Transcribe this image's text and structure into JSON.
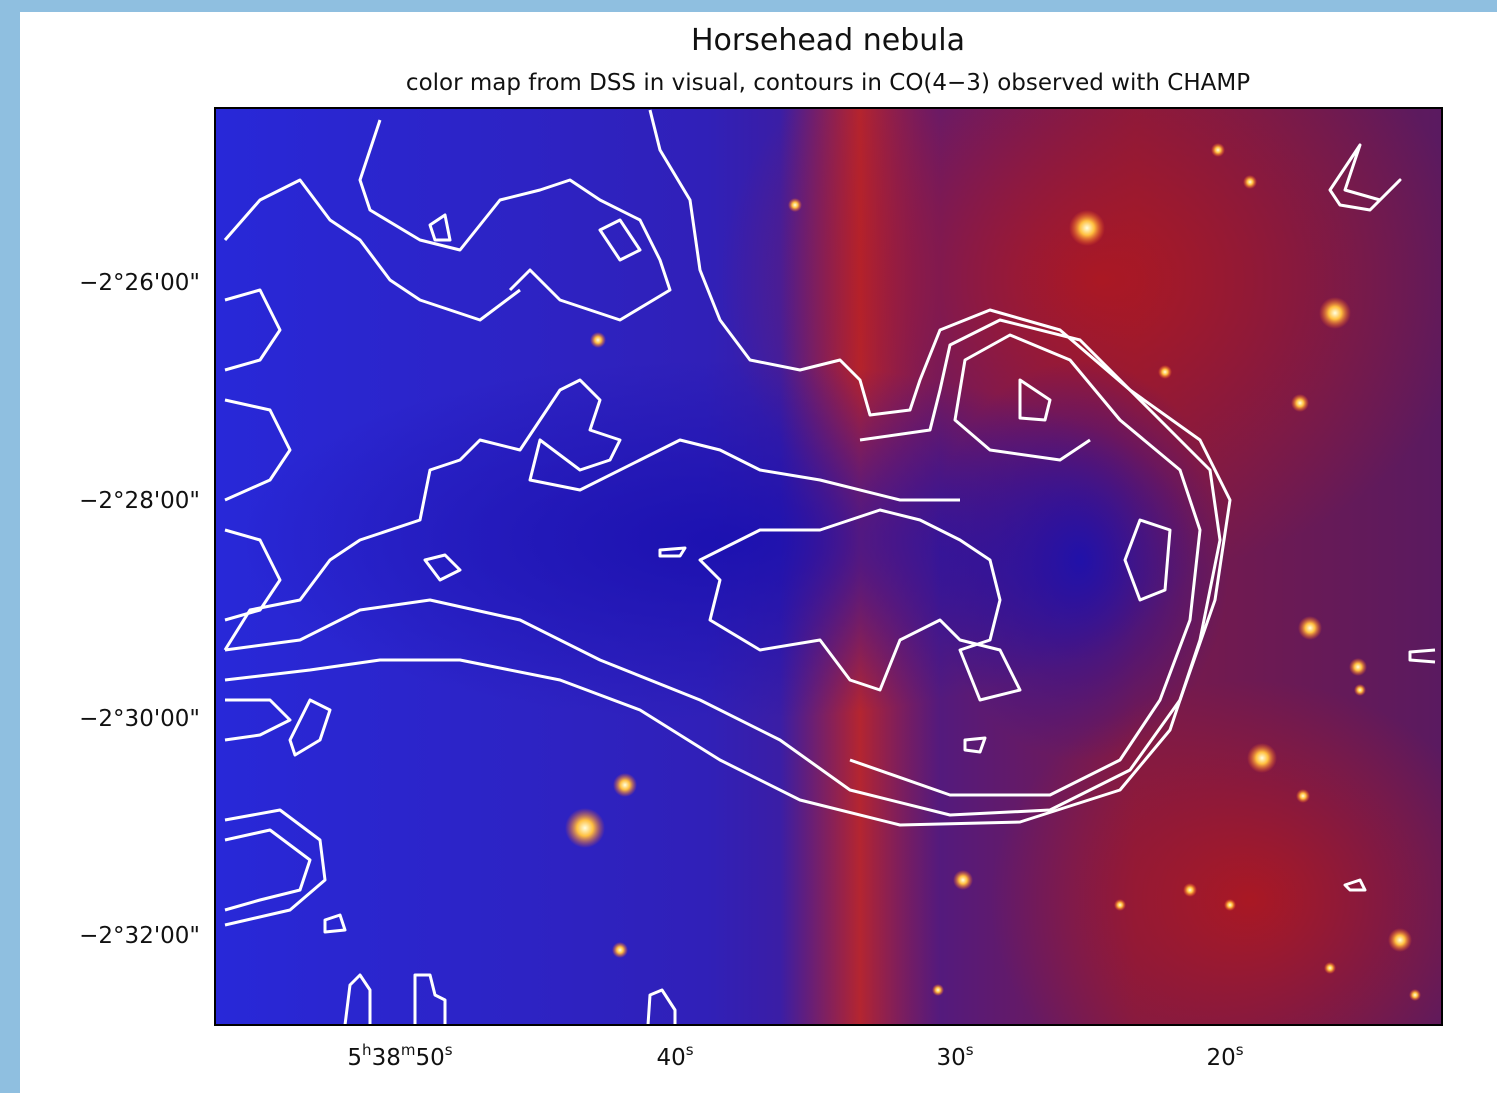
{
  "figure": {
    "title": "Horsehead nebula",
    "subtitle": "color map from DSS in visual, contours in CO(4−3) observed with CHAMP",
    "y_ticks": [
      "−2°26'00\"",
      "−2°28'00\"",
      "−2°30'00\"",
      "−2°32'00\""
    ],
    "x_ticks": [
      {
        "parts": [
          "5",
          "h",
          "38",
          "m",
          "50",
          "s"
        ]
      },
      {
        "parts": [
          "40",
          "s"
        ]
      },
      {
        "parts": [
          "30",
          "s"
        ]
      },
      {
        "parts": [
          "20",
          "s"
        ]
      }
    ]
  }
}
